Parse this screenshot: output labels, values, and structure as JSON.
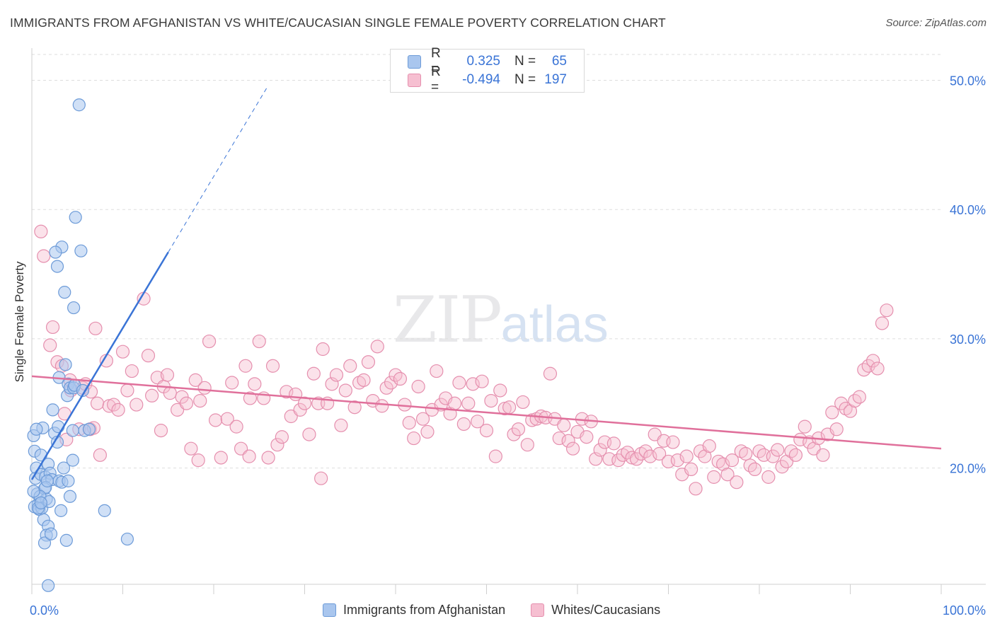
{
  "title": "IMMIGRANTS FROM AFGHANISTAN VS WHITE/CAUCASIAN SINGLE FEMALE POVERTY CORRELATION CHART",
  "source": "Source: ZipAtlas.com",
  "watermark": {
    "zip": "ZIP",
    "atlas": "atlas"
  },
  "legend": {
    "rows": [
      {
        "r_label": "R =",
        "r_value": "0.325",
        "n_label": "N =",
        "n_value": "65"
      },
      {
        "r_label": "R =",
        "r_value": "-0.494",
        "n_label": "N =",
        "n_value": "197"
      }
    ]
  },
  "bottom_legend": [
    "Immigrants from Afghanistan",
    "Whites/Caucasians"
  ],
  "colors": {
    "blue_fill": "#a9c6ee",
    "blue_stroke": "#6d9bd8",
    "blue_line": "#3a74d6",
    "pink_fill": "#f6bfd1",
    "pink_stroke": "#e58fae",
    "pink_line": "#e0709b",
    "tick_label": "#3a74d6",
    "grid": "#dddddd"
  },
  "chart_data": {
    "type": "scatter",
    "title": "IMMIGRANTS FROM AFGHANISTAN VS WHITE/CAUCASIAN SINGLE FEMALE POVERTY CORRELATION CHART",
    "xlabel": "",
    "ylabel": "Single Female Poverty",
    "xlim": [
      0,
      100
    ],
    "ylim": [
      11,
      52
    ],
    "x_tick_labels": [
      "0.0%",
      "100.0%"
    ],
    "y_ticks": [
      20,
      30,
      40,
      50
    ],
    "y_tick_labels": [
      "20.0%",
      "30.0%",
      "40.0%",
      "50.0%"
    ],
    "series": [
      {
        "name": "Immigrants from Afghanistan",
        "r": 0.325,
        "n": 65,
        "trend": {
          "x0": 0.0,
          "y0": 19.1,
          "x1": 15.0,
          "y1": 36.7,
          "dash_to_x": 26.0
        },
        "points": [
          [
            0.2,
            22.5
          ],
          [
            0.3,
            21.3
          ],
          [
            0.5,
            20.0
          ],
          [
            0.4,
            19.2
          ],
          [
            0.6,
            18.0
          ],
          [
            0.7,
            17.2
          ],
          [
            0.3,
            17.0
          ],
          [
            0.8,
            16.8
          ],
          [
            1.0,
            21.0
          ],
          [
            1.2,
            23.1
          ],
          [
            1.0,
            19.5
          ],
          [
            1.4,
            18.4
          ],
          [
            1.5,
            19.3
          ],
          [
            1.8,
            20.3
          ],
          [
            1.6,
            17.6
          ],
          [
            1.3,
            16.0
          ],
          [
            1.8,
            15.5
          ],
          [
            1.6,
            14.8
          ],
          [
            1.4,
            14.2
          ],
          [
            2.0,
            19.6
          ],
          [
            2.2,
            19.1
          ],
          [
            2.3,
            24.5
          ],
          [
            2.5,
            22.7
          ],
          [
            2.8,
            22.0
          ],
          [
            2.9,
            23.2
          ],
          [
            3.0,
            19.0
          ],
          [
            3.0,
            27.0
          ],
          [
            3.3,
            18.9
          ],
          [
            3.5,
            20.0
          ],
          [
            3.2,
            16.7
          ],
          [
            3.6,
            33.6
          ],
          [
            3.3,
            37.1
          ],
          [
            2.6,
            36.7
          ],
          [
            2.8,
            35.6
          ],
          [
            3.7,
            28.0
          ],
          [
            3.9,
            25.6
          ],
          [
            4.0,
            26.5
          ],
          [
            4.2,
            26.2
          ],
          [
            4.5,
            22.9
          ],
          [
            4.2,
            17.8
          ],
          [
            4.0,
            19.0
          ],
          [
            3.8,
            14.4
          ],
          [
            4.5,
            20.6
          ],
          [
            4.6,
            26.2
          ],
          [
            4.7,
            26.4
          ],
          [
            4.6,
            32.4
          ],
          [
            4.8,
            39.4
          ],
          [
            5.2,
            48.1
          ],
          [
            5.4,
            36.8
          ],
          [
            5.6,
            26.0
          ],
          [
            5.8,
            22.9
          ],
          [
            6.3,
            23.0
          ],
          [
            8.0,
            16.7
          ],
          [
            10.5,
            14.5
          ],
          [
            1.8,
            10.9
          ],
          [
            1.5,
            18.5
          ],
          [
            0.9,
            17.8
          ],
          [
            1.1,
            16.9
          ],
          [
            1.9,
            17.4
          ],
          [
            0.2,
            18.2
          ],
          [
            0.7,
            16.9
          ],
          [
            2.1,
            14.9
          ],
          [
            0.5,
            23.0
          ],
          [
            1.0,
            17.3
          ],
          [
            1.7,
            19.0
          ]
        ]
      },
      {
        "name": "Whites/Caucasians",
        "r": -0.494,
        "n": 197,
        "trend": {
          "x0": 0.0,
          "y0": 27.1,
          "x1": 100.0,
          "y1": 21.5
        },
        "points": [
          [
            1.0,
            38.3
          ],
          [
            1.3,
            36.4
          ],
          [
            2.0,
            29.5
          ],
          [
            2.3,
            30.9
          ],
          [
            2.8,
            28.2
          ],
          [
            3.3,
            27.9
          ],
          [
            3.6,
            24.2
          ],
          [
            3.8,
            22.2
          ],
          [
            4.2,
            26.8
          ],
          [
            4.3,
            26.0
          ],
          [
            5.2,
            23.0
          ],
          [
            5.6,
            26.2
          ],
          [
            5.9,
            26.5
          ],
          [
            6.4,
            23.0
          ],
          [
            6.8,
            23.1
          ],
          [
            7.0,
            30.8
          ],
          [
            7.2,
            25.0
          ],
          [
            7.5,
            21.0
          ],
          [
            8.2,
            28.3
          ],
          [
            8.5,
            24.8
          ],
          [
            9.0,
            24.9
          ],
          [
            9.5,
            24.5
          ],
          [
            10.0,
            29.0
          ],
          [
            10.5,
            26.0
          ],
          [
            11.0,
            27.5
          ],
          [
            11.5,
            24.9
          ],
          [
            12.3,
            33.1
          ],
          [
            12.8,
            28.7
          ],
          [
            13.2,
            25.6
          ],
          [
            13.8,
            27.0
          ],
          [
            14.2,
            22.9
          ],
          [
            14.5,
            26.3
          ],
          [
            14.9,
            27.2
          ],
          [
            15.2,
            25.8
          ],
          [
            16.0,
            24.5
          ],
          [
            16.5,
            25.5
          ],
          [
            17.0,
            25.0
          ],
          [
            17.5,
            21.5
          ],
          [
            18.0,
            26.8
          ],
          [
            18.5,
            25.2
          ],
          [
            19.0,
            26.2
          ],
          [
            19.5,
            29.8
          ],
          [
            20.2,
            23.7
          ],
          [
            20.8,
            20.8
          ],
          [
            21.5,
            23.8
          ],
          [
            22.0,
            26.6
          ],
          [
            22.5,
            23.2
          ],
          [
            23.0,
            21.5
          ],
          [
            23.5,
            27.9
          ],
          [
            24.0,
            25.4
          ],
          [
            24.5,
            26.5
          ],
          [
            25.0,
            29.8
          ],
          [
            25.5,
            25.4
          ],
          [
            26.0,
            20.8
          ],
          [
            26.5,
            27.9
          ],
          [
            27.0,
            21.8
          ],
          [
            27.5,
            22.4
          ],
          [
            28.0,
            25.9
          ],
          [
            28.5,
            24.0
          ],
          [
            29.0,
            25.7
          ],
          [
            29.5,
            24.5
          ],
          [
            30.0,
            25.0
          ],
          [
            30.5,
            22.6
          ],
          [
            31.0,
            27.3
          ],
          [
            31.5,
            25.0
          ],
          [
            32.0,
            29.2
          ],
          [
            32.5,
            25.0
          ],
          [
            33.0,
            26.5
          ],
          [
            33.5,
            27.2
          ],
          [
            34.0,
            23.3
          ],
          [
            34.5,
            26.0
          ],
          [
            35.0,
            27.9
          ],
          [
            35.5,
            24.7
          ],
          [
            36.0,
            26.6
          ],
          [
            36.5,
            26.8
          ],
          [
            37.0,
            28.2
          ],
          [
            37.5,
            25.2
          ],
          [
            38.0,
            29.4
          ],
          [
            38.5,
            24.8
          ],
          [
            39.0,
            26.2
          ],
          [
            39.5,
            26.6
          ],
          [
            40.0,
            27.2
          ],
          [
            40.5,
            26.9
          ],
          [
            41.0,
            24.9
          ],
          [
            41.5,
            23.5
          ],
          [
            42.0,
            22.3
          ],
          [
            42.5,
            26.3
          ],
          [
            43.0,
            23.8
          ],
          [
            43.5,
            22.8
          ],
          [
            44.0,
            24.5
          ],
          [
            44.5,
            27.5
          ],
          [
            45.0,
            24.9
          ],
          [
            45.5,
            25.4
          ],
          [
            46.0,
            24.2
          ],
          [
            46.5,
            25.0
          ],
          [
            47.0,
            26.6
          ],
          [
            47.5,
            23.4
          ],
          [
            48.0,
            25.0
          ],
          [
            48.5,
            26.5
          ],
          [
            49.0,
            23.6
          ],
          [
            49.5,
            26.7
          ],
          [
            50.0,
            22.9
          ],
          [
            50.5,
            25.2
          ],
          [
            51.0,
            20.9
          ],
          [
            51.5,
            26.0
          ],
          [
            52.0,
            24.6
          ],
          [
            52.5,
            24.7
          ],
          [
            53.0,
            22.6
          ],
          [
            53.5,
            23.0
          ],
          [
            54.0,
            25.1
          ],
          [
            54.5,
            21.8
          ],
          [
            55.0,
            23.7
          ],
          [
            55.5,
            23.8
          ],
          [
            56.0,
            24.0
          ],
          [
            56.5,
            23.9
          ],
          [
            57.0,
            27.3
          ],
          [
            57.5,
            23.8
          ],
          [
            58.0,
            22.3
          ],
          [
            58.5,
            23.3
          ],
          [
            59.0,
            22.1
          ],
          [
            59.5,
            21.5
          ],
          [
            60.0,
            22.8
          ],
          [
            60.5,
            23.8
          ],
          [
            61.0,
            22.4
          ],
          [
            61.5,
            23.6
          ],
          [
            62.0,
            20.7
          ],
          [
            62.5,
            21.4
          ],
          [
            63.0,
            22.0
          ],
          [
            63.5,
            20.7
          ],
          [
            64.0,
            21.9
          ],
          [
            64.5,
            20.6
          ],
          [
            65.0,
            21.0
          ],
          [
            65.5,
            21.2
          ],
          [
            66.0,
            20.8
          ],
          [
            66.5,
            20.7
          ],
          [
            67.0,
            21.1
          ],
          [
            67.5,
            21.3
          ],
          [
            68.0,
            20.9
          ],
          [
            68.5,
            22.6
          ],
          [
            69.0,
            21.1
          ],
          [
            69.5,
            22.1
          ],
          [
            70.0,
            20.5
          ],
          [
            70.5,
            22.0
          ],
          [
            71.0,
            20.6
          ],
          [
            71.5,
            19.5
          ],
          [
            72.0,
            20.9
          ],
          [
            72.5,
            19.9
          ],
          [
            73.0,
            18.4
          ],
          [
            73.5,
            21.3
          ],
          [
            74.0,
            20.9
          ],
          [
            74.5,
            21.7
          ],
          [
            75.0,
            19.3
          ],
          [
            75.5,
            20.5
          ],
          [
            76.0,
            20.3
          ],
          [
            76.5,
            19.5
          ],
          [
            77.0,
            20.6
          ],
          [
            77.5,
            18.9
          ],
          [
            78.0,
            21.3
          ],
          [
            78.5,
            21.1
          ],
          [
            79.0,
            20.2
          ],
          [
            79.5,
            19.9
          ],
          [
            80.0,
            21.3
          ],
          [
            80.5,
            21.0
          ],
          [
            81.0,
            19.3
          ],
          [
            81.5,
            20.9
          ],
          [
            82.0,
            21.4
          ],
          [
            82.5,
            20.1
          ],
          [
            83.0,
            20.5
          ],
          [
            83.5,
            21.3
          ],
          [
            84.0,
            21.0
          ],
          [
            84.5,
            22.2
          ],
          [
            85.0,
            23.2
          ],
          [
            85.5,
            22.0
          ],
          [
            86.0,
            21.5
          ],
          [
            86.5,
            22.3
          ],
          [
            87.0,
            21.0
          ],
          [
            87.5,
            22.6
          ],
          [
            88.0,
            24.3
          ],
          [
            88.5,
            23.0
          ],
          [
            89.0,
            25.0
          ],
          [
            89.5,
            24.6
          ],
          [
            90.0,
            24.4
          ],
          [
            90.5,
            25.2
          ],
          [
            91.0,
            25.5
          ],
          [
            91.5,
            27.6
          ],
          [
            92.0,
            27.9
          ],
          [
            92.5,
            28.3
          ],
          [
            93.0,
            27.7
          ],
          [
            93.5,
            31.2
          ],
          [
            94.0,
            32.2
          ],
          [
            6.5,
            25.9
          ],
          [
            18.3,
            20.6
          ],
          [
            23.9,
            20.9
          ],
          [
            31.8,
            19.2
          ]
        ]
      }
    ]
  }
}
